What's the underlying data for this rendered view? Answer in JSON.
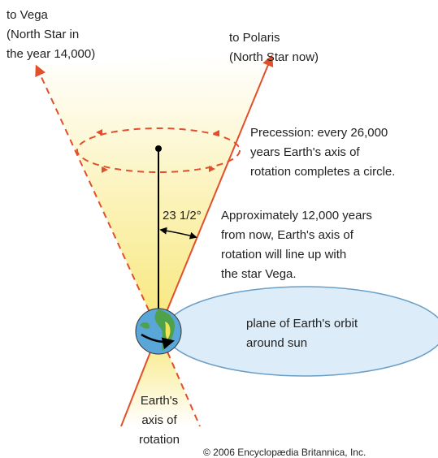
{
  "vega_label": {
    "lines": [
      "to Vega",
      "(North Star in",
      "the year 14,000)"
    ]
  },
  "polaris_label": {
    "lines": [
      "to Polaris",
      "(North Star now)"
    ]
  },
  "precession_note": {
    "lines": [
      "Precession: every 26,000",
      "years Earth's axis of",
      "rotation completes a circle."
    ]
  },
  "angle_label": "23 1/2°",
  "future_note": {
    "lines": [
      "Approximately 12,000 years",
      "from now, Earth's axis of",
      "rotation will line up with",
      "the star Vega."
    ]
  },
  "orbit_label": {
    "lines": [
      "plane of Earth's orbit",
      "around sun"
    ]
  },
  "axis_label": {
    "lines": [
      "Earth's",
      "axis of",
      "rotation"
    ]
  },
  "copyright": "© 2006 Encyclopædia Britannica, Inc."
}
